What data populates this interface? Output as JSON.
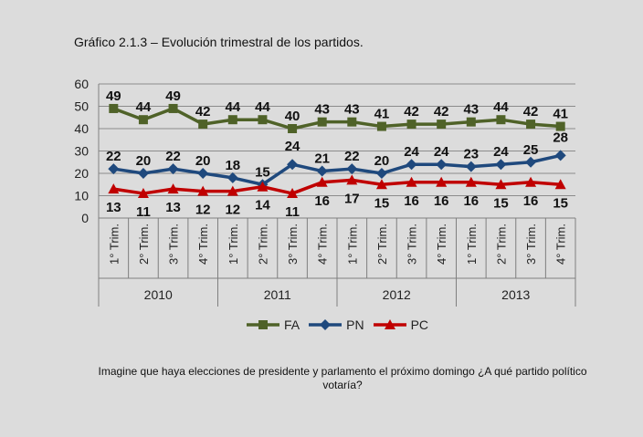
{
  "title": "Gráfico 2.1.3 – Evolución trimestral de los partidos.",
  "footnote": "Imagine que haya elecciones de presidente y parlamento el próximo domingo ¿A qué partido político votaría?",
  "chart_data": {
    "type": "line",
    "title": "Gráfico 2.1.3 – Evolución trimestral de los partidos.",
    "xlabel": "",
    "ylabel": "",
    "ylim": [
      0,
      60
    ],
    "yticks": [
      0,
      10,
      20,
      30,
      40,
      50,
      60
    ],
    "grid": true,
    "legend_position": "bottom",
    "categories": [
      "1° Trim.",
      "2° Trim.",
      "3° Trim.",
      "4° Trim.",
      "1° Trim.",
      "2° Trim.",
      "3° Trim.",
      "4° Trim.",
      "1° Trim.",
      "2° Trim.",
      "3° Trim.",
      "4° Trim.",
      "1° Trim.",
      "2° Trim.",
      "3° Trim.",
      "4° Trim."
    ],
    "groups": [
      {
        "label": "2010",
        "span": 4
      },
      {
        "label": "2011",
        "span": 4
      },
      {
        "label": "2012",
        "span": 4
      },
      {
        "label": "2013",
        "span": 4
      }
    ],
    "series": [
      {
        "name": "FA",
        "color": "#4f6228",
        "marker": "square",
        "values": [
          49,
          44,
          49,
          42,
          44,
          44,
          40,
          43,
          43,
          41,
          42,
          42,
          43,
          44,
          42,
          41
        ]
      },
      {
        "name": "PN",
        "color": "#1f497d",
        "marker": "diamond",
        "values": [
          22,
          20,
          22,
          20,
          18,
          15,
          24,
          21,
          22,
          20,
          24,
          24,
          23,
          24,
          25,
          28
        ]
      },
      {
        "name": "PC",
        "color": "#c00000",
        "marker": "triangle",
        "values": [
          13,
          11,
          13,
          12,
          12,
          14,
          11,
          16,
          17,
          15,
          16,
          16,
          16,
          15,
          16,
          15
        ]
      }
    ]
  }
}
